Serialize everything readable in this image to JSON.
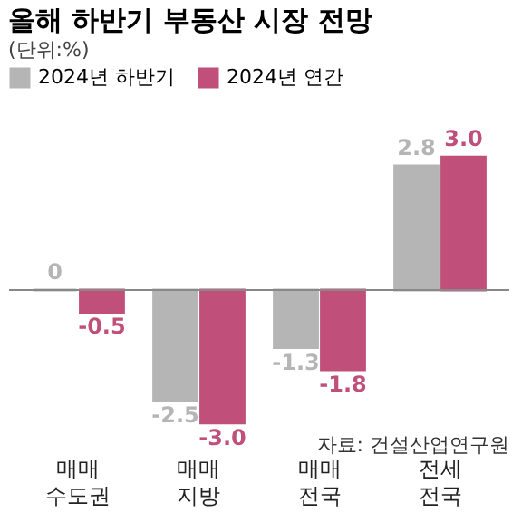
{
  "chart_data": {
    "type": "bar",
    "title": "올해 하반기 부동산 시장 전망",
    "subtitle": "(단위:%)",
    "categories": [
      "매매\n수도권",
      "매매\n지방",
      "매매\n전국",
      "전세\n전국"
    ],
    "series": [
      {
        "name": "2024년 하반기",
        "color": "#b5b5b5",
        "values": [
          0,
          -2.5,
          -1.3,
          2.8
        ],
        "value_labels": [
          "0",
          "-2.5",
          "-1.3",
          "2.8"
        ]
      },
      {
        "name": "2024년 연간",
        "color": "#c0507a",
        "values": [
          -0.5,
          -3.0,
          -1.8,
          3.0
        ],
        "value_labels": [
          "-0.5",
          "-3.0",
          "-1.8",
          "3.0"
        ]
      }
    ],
    "legend": "top",
    "annotations": [
      "자료: 건설산업연구원"
    ]
  }
}
